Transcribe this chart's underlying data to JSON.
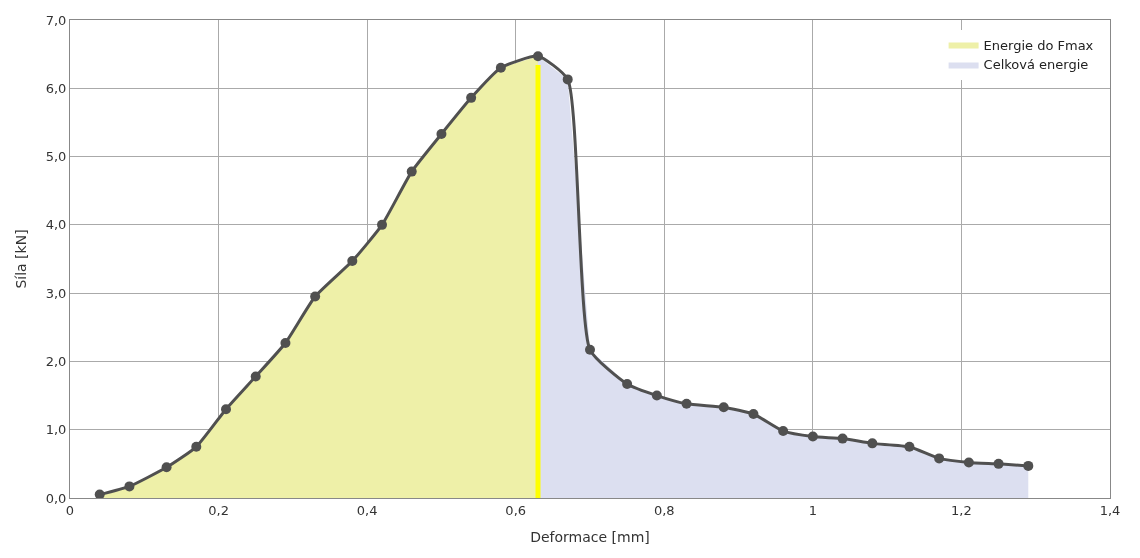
{
  "chart_data": {
    "type": "line",
    "xlabel": "Deformace [mm]",
    "ylabel": "Síla [kN]",
    "xlim": [
      0,
      1.4
    ],
    "xticks": [
      {
        "value": 0,
        "label": "0"
      },
      {
        "value": 0.2,
        "label": "0,2"
      },
      {
        "value": 0.4,
        "label": "0,4"
      },
      {
        "value": 0.6,
        "label": "0,6"
      },
      {
        "value": 0.8,
        "label": "0,8"
      },
      {
        "value": 1,
        "label": "1"
      },
      {
        "value": 1.2,
        "label": "1,2"
      },
      {
        "value": 1.4,
        "label": "1,4"
      }
    ],
    "ylim": [
      0,
      7
    ],
    "yticks": [
      {
        "value": 0,
        "label": "0,0"
      },
      {
        "value": 1,
        "label": "1,0"
      },
      {
        "value": 2,
        "label": "2,0"
      },
      {
        "value": 3,
        "label": "3,0"
      },
      {
        "value": 4,
        "label": "4,0"
      },
      {
        "value": 5,
        "label": "5,0"
      },
      {
        "value": 6,
        "label": "6,0"
      },
      {
        "value": 7,
        "label": "7,0"
      }
    ],
    "grid": true,
    "legend": "top right",
    "ref_lines": [
      {
        "axis": "x",
        "value": 0.63,
        "color": "#ffff00"
      }
    ],
    "series": [
      {
        "type": "area",
        "name": "Energie do Fmax",
        "color": "#eef0a8",
        "x": [
          0.04,
          0.08,
          0.13,
          0.17,
          0.21,
          0.25,
          0.29,
          0.33,
          0.38,
          0.42,
          0.46,
          0.5,
          0.54,
          0.58,
          0.63
        ],
        "values": [
          0.05,
          0.17,
          0.45,
          0.75,
          1.3,
          1.78,
          2.27,
          2.95,
          3.47,
          4.0,
          4.78,
          5.33,
          5.86,
          6.3,
          6.47
        ]
      },
      {
        "type": "area",
        "name": "Celková energie",
        "color": "#dcdff0",
        "x": [
          0.63,
          0.67,
          0.7,
          0.75,
          0.79,
          0.83,
          0.88,
          0.92,
          0.96,
          1.0,
          1.04,
          1.08,
          1.13,
          1.17,
          1.21,
          1.25,
          1.29
        ],
        "values": [
          6.47,
          6.13,
          2.17,
          1.67,
          1.5,
          1.38,
          1.33,
          1.23,
          0.98,
          0.9,
          0.87,
          0.8,
          0.75,
          0.58,
          0.52,
          0.5,
          0.47
        ]
      },
      {
        "color": "#505050",
        "marker": "circle",
        "line_style": "solid",
        "x": [
          0.04,
          0.08,
          0.13,
          0.17,
          0.21,
          0.25,
          0.29,
          0.33,
          0.38,
          0.42,
          0.46,
          0.5,
          0.54,
          0.58,
          0.63,
          0.67,
          0.7,
          0.75,
          0.79,
          0.83,
          0.88,
          0.92,
          0.96,
          1.0,
          1.04,
          1.08,
          1.13,
          1.17,
          1.21,
          1.25,
          1.29
        ],
        "values": [
          0.05,
          0.17,
          0.45,
          0.75,
          1.3,
          1.78,
          2.27,
          2.95,
          3.47,
          4.0,
          4.78,
          5.33,
          5.86,
          6.3,
          6.47,
          6.13,
          2.17,
          1.67,
          1.5,
          1.38,
          1.33,
          1.23,
          0.98,
          0.9,
          0.87,
          0.8,
          0.75,
          0.58,
          0.52,
          0.5,
          0.47
        ]
      }
    ]
  }
}
